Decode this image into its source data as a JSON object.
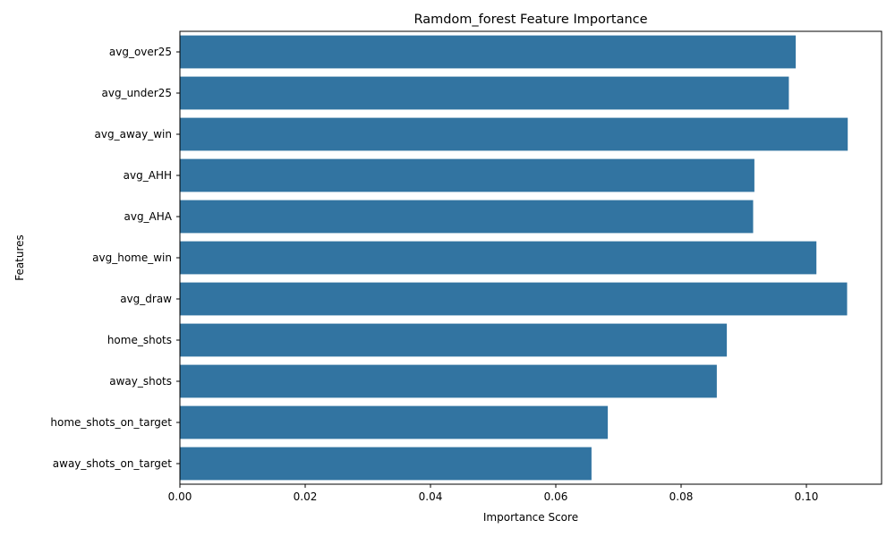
{
  "chart_data": {
    "type": "bar",
    "orientation": "horizontal",
    "title": "Ramdom_forest Feature Importance",
    "xlabel": "Importance Score",
    "ylabel": "Features",
    "categories": [
      "avg_over25",
      "avg_under25",
      "avg_away_win",
      "avg_AHH",
      "avg_AHA",
      "avg_home_win",
      "avg_draw",
      "home_shots",
      "away_shots",
      "home_shots_on_target",
      "away_shots_on_target"
    ],
    "values": [
      0.0983,
      0.0972,
      0.1066,
      0.0917,
      0.0915,
      0.1016,
      0.1065,
      0.0873,
      0.0857,
      0.0683,
      0.0657
    ],
    "xlim": [
      0.0,
      0.112
    ],
    "xticks": [
      0.0,
      0.02,
      0.04,
      0.06,
      0.08,
      0.1
    ],
    "xtick_labels": [
      "0.00",
      "0.02",
      "0.04",
      "0.06",
      "0.08",
      "0.10"
    ],
    "grid": false,
    "colors": {
      "bar": "#3274a1",
      "axis": "#000000"
    }
  }
}
